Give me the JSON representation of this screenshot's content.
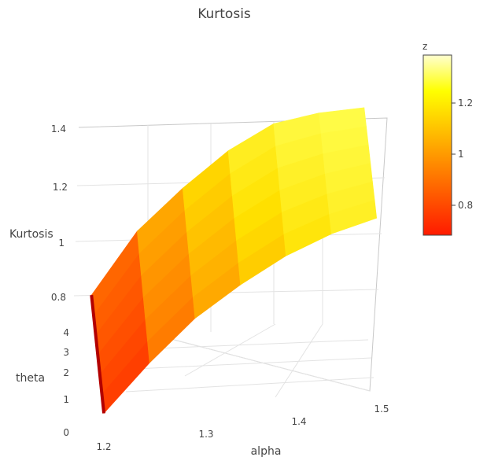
{
  "chart_data": {
    "type": "surface",
    "title": "Kurtosis",
    "x_axis": {
      "title": "alpha",
      "ticks": [
        "1.2",
        "1.3",
        "1.4",
        "1.5"
      ],
      "range": [
        1.2,
        1.5
      ]
    },
    "y_axis": {
      "title": "theta",
      "ticks": [
        "0",
        "1",
        "2",
        "3",
        "4"
      ],
      "range": [
        0,
        4
      ]
    },
    "z_axis": {
      "title": "Kurtosis",
      "ticks": [
        "0.8",
        "1",
        "1.2",
        "1.4"
      ],
      "range": [
        0.7,
        1.4
      ]
    },
    "colorbar": {
      "title": "z",
      "ticks": [
        "0.8",
        "1",
        "1.2"
      ],
      "range": [
        0.7,
        1.38
      ],
      "colors": [
        "#ff0000",
        "#ff8000",
        "#ffff00",
        "#ffffcc"
      ]
    },
    "surface": {
      "alpha": [
        1.2,
        1.25,
        1.3,
        1.35,
        1.4,
        1.45,
        1.5
      ],
      "theta": [
        0,
        4
      ],
      "z_at_theta0": [
        0.72,
        0.86,
        0.99,
        1.09,
        1.18,
        1.25,
        1.3
      ],
      "z_at_theta4": [
        0.8,
        0.99,
        1.12,
        1.24,
        1.33,
        1.36,
        1.37
      ]
    }
  }
}
